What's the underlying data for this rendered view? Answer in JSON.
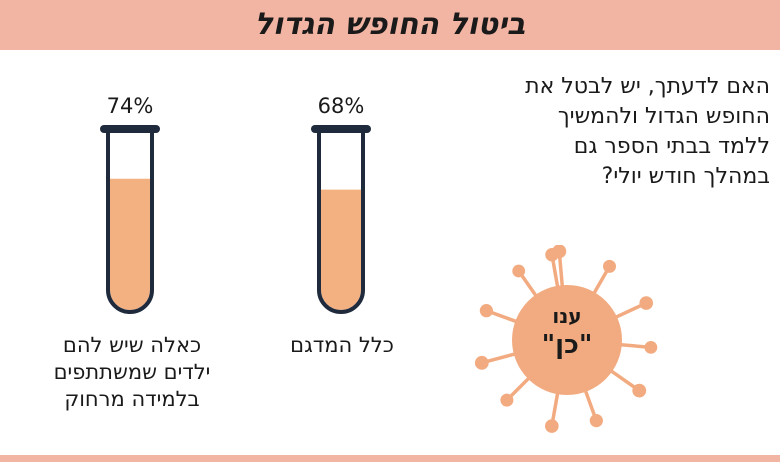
{
  "header": {
    "title": "ביטול החופש הגדול"
  },
  "question": {
    "lines": [
      "האם לדעתך, יש לבטל את",
      "החופש הגדול ולהמשיך",
      "ללמד בבתי הספר גם",
      "במהלך חודש יולי?"
    ]
  },
  "answer_badge": {
    "line1": "ענו",
    "line2": "\"כן\""
  },
  "colors": {
    "banner": "#f2b4a3",
    "fill": "#f3b182",
    "tube_outline": "#1f2a3c",
    "virus": "#f2ab80"
  },
  "chart_data": {
    "type": "bar",
    "categories": [
      "כלל המדגם",
      "כאלה שיש להם ילדים שמשתתפים בלמידה מרחוק"
    ],
    "category_lines": [
      [
        "כלל המדגם"
      ],
      [
        "כאלה שיש להם",
        "ילדים שמשתתפים",
        "בלמידה מרחוק"
      ]
    ],
    "values": [
      68,
      74
    ],
    "value_labels": [
      "68%",
      "74%"
    ],
    "ylim": [
      0,
      100
    ],
    "unit": "%"
  }
}
